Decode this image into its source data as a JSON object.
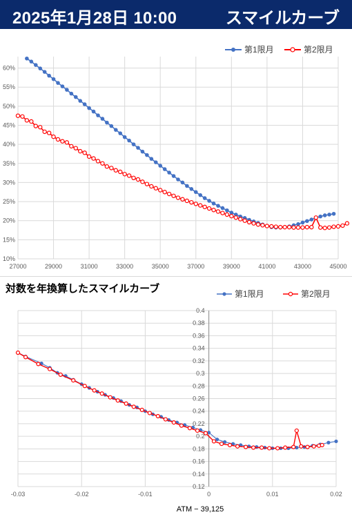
{
  "header": {
    "date": "2025年1月28日 10:00",
    "title": "スマイルカーブ"
  },
  "colors": {
    "header_bg": "#0b2a6b",
    "series1": "#4472c4",
    "series2": "#ff0000"
  },
  "chart_data": [
    {
      "type": "line",
      "title": "",
      "xlabel": "",
      "ylabel": "",
      "xlim": [
        27000,
        45000
      ],
      "ylim": [
        10,
        63
      ],
      "x_ticks": [
        27000,
        29000,
        31000,
        33000,
        35000,
        37000,
        39000,
        41000,
        43000,
        45000
      ],
      "x_tick_labels": [
        "27000",
        "29000",
        "31000",
        "33000",
        "35000",
        "37000",
        "39000",
        "41000",
        "43000",
        "45000"
      ],
      "y_ticks": [
        10,
        15,
        20,
        25,
        30,
        35,
        40,
        45,
        50,
        55,
        60
      ],
      "y_tick_labels": [
        "10%",
        "15%",
        "20%",
        "25%",
        "30%",
        "35%",
        "40%",
        "45%",
        "50%",
        "55%",
        "60%"
      ],
      "grid": true,
      "legend": "top-right",
      "series": [
        {
          "name": "第1限月",
          "points": [
            [
              27500,
              62.5
            ],
            [
              27750,
              61.7
            ],
            [
              28000,
              60.8
            ],
            [
              28250,
              59.9
            ],
            [
              28500,
              59.0
            ],
            [
              28750,
              58.0
            ],
            [
              29000,
              57.1
            ],
            [
              29250,
              56.1
            ],
            [
              29500,
              55.2
            ],
            [
              29750,
              54.3
            ],
            [
              30000,
              53.3
            ],
            [
              30250,
              52.4
            ],
            [
              30500,
              51.4
            ],
            [
              30750,
              50.5
            ],
            [
              31000,
              49.5
            ],
            [
              31250,
              48.6
            ],
            [
              31500,
              47.6
            ],
            [
              31750,
              46.7
            ],
            [
              32000,
              45.7
            ],
            [
              32250,
              44.8
            ],
            [
              32500,
              43.8
            ],
            [
              32750,
              42.9
            ],
            [
              33000,
              41.9
            ],
            [
              33250,
              41.0
            ],
            [
              33500,
              40.0
            ],
            [
              33750,
              39.1
            ],
            [
              34000,
              38.1
            ],
            [
              34250,
              37.2
            ],
            [
              34500,
              36.2
            ],
            [
              34750,
              35.3
            ],
            [
              35000,
              34.4
            ],
            [
              35250,
              33.5
            ],
            [
              35500,
              32.6
            ],
            [
              35750,
              31.7
            ],
            [
              36000,
              30.8
            ],
            [
              36250,
              30.0
            ],
            [
              36500,
              29.1
            ],
            [
              36750,
              28.3
            ],
            [
              37000,
              27.5
            ],
            [
              37250,
              26.7
            ],
            [
              37500,
              25.9
            ],
            [
              37750,
              25.2
            ],
            [
              38000,
              24.5
            ],
            [
              38250,
              23.9
            ],
            [
              38500,
              23.3
            ],
            [
              38750,
              22.7
            ],
            [
              39000,
              22.1
            ],
            [
              39250,
              21.6
            ],
            [
              39500,
              21.1
            ],
            [
              39750,
              20.7
            ],
            [
              40000,
              20.2
            ],
            [
              40250,
              19.8
            ],
            [
              40500,
              19.4
            ],
            [
              40750,
              19.0
            ],
            [
              41000,
              18.6
            ],
            [
              41250,
              18.3
            ],
            [
              41500,
              18.2
            ],
            [
              41750,
              18.2
            ],
            [
              42000,
              18.3
            ],
            [
              42250,
              18.5
            ],
            [
              42500,
              18.8
            ],
            [
              42750,
              19.1
            ],
            [
              43000,
              19.5
            ],
            [
              43250,
              19.9
            ],
            [
              43500,
              20.3
            ],
            [
              43750,
              20.7
            ],
            [
              44000,
              21.1
            ],
            [
              44250,
              21.4
            ],
            [
              44500,
              21.6
            ],
            [
              44750,
              21.8
            ]
          ]
        },
        {
          "name": "第2限月",
          "points": [
            [
              27000,
              47.5
            ],
            [
              27250,
              47.3
            ],
            [
              27500,
              46.3
            ],
            [
              27750,
              46.0
            ],
            [
              28000,
              44.8
            ],
            [
              28250,
              44.5
            ],
            [
              28500,
              43.3
            ],
            [
              28750,
              43.0
            ],
            [
              29000,
              42.0
            ],
            [
              29250,
              41.3
            ],
            [
              29500,
              40.8
            ],
            [
              29750,
              40.5
            ],
            [
              30000,
              39.5
            ],
            [
              30250,
              39.0
            ],
            [
              30500,
              38.2
            ],
            [
              30750,
              37.8
            ],
            [
              31000,
              36.8
            ],
            [
              31250,
              36.3
            ],
            [
              31500,
              35.6
            ],
            [
              31750,
              35.0
            ],
            [
              32000,
              34.2
            ],
            [
              32250,
              33.8
            ],
            [
              32500,
              33.2
            ],
            [
              32750,
              32.8
            ],
            [
              33000,
              32.2
            ],
            [
              33250,
              31.8
            ],
            [
              33500,
              31.2
            ],
            [
              33750,
              30.8
            ],
            [
              34000,
              30.2
            ],
            [
              34250,
              29.6
            ],
            [
              34500,
              29.0
            ],
            [
              34750,
              28.5
            ],
            [
              35000,
              28.0
            ],
            [
              35250,
              27.5
            ],
            [
              35500,
              27.0
            ],
            [
              35750,
              26.5
            ],
            [
              36000,
              26.0
            ],
            [
              36250,
              25.6
            ],
            [
              36500,
              25.2
            ],
            [
              36750,
              24.8
            ],
            [
              37000,
              24.4
            ],
            [
              37250,
              24.0
            ],
            [
              37500,
              23.6
            ],
            [
              37750,
              23.2
            ],
            [
              38000,
              22.8
            ],
            [
              38250,
              22.4
            ],
            [
              38500,
              22.0
            ],
            [
              38750,
              21.6
            ],
            [
              39000,
              21.2
            ],
            [
              39250,
              20.8
            ],
            [
              39500,
              20.4
            ],
            [
              39750,
              20.0
            ],
            [
              40000,
              19.6
            ],
            [
              40250,
              19.3
            ],
            [
              40500,
              19.0
            ],
            [
              40750,
              18.8
            ],
            [
              41000,
              18.6
            ],
            [
              41250,
              18.5
            ],
            [
              41500,
              18.4
            ],
            [
              41750,
              18.3
            ],
            [
              42000,
              18.3
            ],
            [
              42250,
              18.3
            ],
            [
              42500,
              18.2
            ],
            [
              42750,
              18.2
            ],
            [
              43000,
              18.2
            ],
            [
              43250,
              18.3
            ],
            [
              43500,
              18.3
            ],
            [
              43750,
              20.8
            ],
            [
              44000,
              18.2
            ],
            [
              44250,
              18.1
            ],
            [
              44500,
              18.2
            ],
            [
              44750,
              18.4
            ],
            [
              45000,
              18.5
            ],
            [
              45250,
              18.7
            ],
            [
              45500,
              19.3
            ]
          ]
        }
      ]
    },
    {
      "type": "line",
      "title": "対数を年換算したスマイルカーブ",
      "xlabel": "ATM − 39,125",
      "ylabel": "",
      "xlim": [
        -0.03,
        0.02
      ],
      "ylim": [
        0.12,
        0.4
      ],
      "x_ticks": [
        -0.03,
        -0.02,
        -0.01,
        0,
        0.01,
        0.02
      ],
      "x_tick_labels": [
        "-0.03",
        "-0.02",
        "-0.01",
        "0",
        "0.01",
        "0.02"
      ],
      "y_ticks": [
        0.12,
        0.14,
        0.16,
        0.18,
        0.2,
        0.22,
        0.24,
        0.26,
        0.28,
        0.3,
        0.32,
        0.34,
        0.36,
        0.38,
        0.4
      ],
      "y_tick_labels": [
        "0.12",
        "0.14",
        "0.16",
        "0.18",
        "0.2",
        "0.22",
        "0.24",
        "0.26",
        "0.28",
        "0.3",
        "0.32",
        "0.34",
        "0.36",
        "0.38",
        "0.4"
      ],
      "grid": true,
      "legend": "top-right",
      "series": [
        {
          "name": "第1限月",
          "points": [
            [
              -0.03,
              0.333
            ],
            [
              -0.0288,
              0.327
            ],
            [
              -0.0263,
              0.316
            ],
            [
              -0.025,
              0.309
            ],
            [
              -0.0238,
              0.301
            ],
            [
              -0.0225,
              0.296
            ],
            [
              -0.0213,
              0.29
            ],
            [
              -0.02,
              0.283
            ],
            [
              -0.0188,
              0.277
            ],
            [
              -0.0175,
              0.271
            ],
            [
              -0.0163,
              0.266
            ],
            [
              -0.015,
              0.261
            ],
            [
              -0.0138,
              0.256
            ],
            [
              -0.0125,
              0.25
            ],
            [
              -0.0113,
              0.246
            ],
            [
              -0.01,
              0.24
            ],
            [
              -0.0088,
              0.235
            ],
            [
              -0.0075,
              0.231
            ],
            [
              -0.0063,
              0.226
            ],
            [
              -0.005,
              0.222
            ],
            [
              -0.0038,
              0.218
            ],
            [
              -0.0025,
              0.214
            ],
            [
              -0.0013,
              0.21
            ],
            [
              0.0,
              0.206
            ],
            [
              0.0013,
              0.195
            ],
            [
              0.0025,
              0.191
            ],
            [
              0.0038,
              0.188
            ],
            [
              0.005,
              0.186
            ],
            [
              0.0063,
              0.184
            ],
            [
              0.0075,
              0.183
            ],
            [
              0.0088,
              0.182
            ],
            [
              0.01,
              0.181
            ],
            [
              0.0113,
              0.181
            ],
            [
              0.0125,
              0.181
            ],
            [
              0.0138,
              0.182
            ],
            [
              0.015,
              0.183
            ],
            [
              0.0163,
              0.185
            ],
            [
              0.0175,
              0.187
            ],
            [
              0.0188,
              0.19
            ],
            [
              0.02,
              0.192
            ]
          ]
        },
        {
          "name": "第2限月",
          "points": [
            [
              -0.03,
              0.333
            ],
            [
              -0.0288,
              0.326
            ],
            [
              -0.0268,
              0.315
            ],
            [
              -0.025,
              0.307
            ],
            [
              -0.0233,
              0.298
            ],
            [
              -0.0213,
              0.289
            ],
            [
              -0.0195,
              0.28
            ],
            [
              -0.018,
              0.273
            ],
            [
              -0.0168,
              0.268
            ],
            [
              -0.0155,
              0.262
            ],
            [
              -0.0143,
              0.257
            ],
            [
              -0.013,
              0.252
            ],
            [
              -0.0118,
              0.247
            ],
            [
              -0.0105,
              0.242
            ],
            [
              -0.0093,
              0.237
            ],
            [
              -0.008,
              0.232
            ],
            [
              -0.0068,
              0.227
            ],
            [
              -0.0055,
              0.222
            ],
            [
              -0.0043,
              0.217
            ],
            [
              -0.003,
              0.213
            ],
            [
              -0.0018,
              0.209
            ],
            [
              -0.0005,
              0.205
            ],
            [
              0.0008,
              0.192
            ],
            [
              0.002,
              0.188
            ],
            [
              0.0033,
              0.186
            ],
            [
              0.0045,
              0.184
            ],
            [
              0.0058,
              0.183
            ],
            [
              0.007,
              0.182
            ],
            [
              0.0083,
              0.182
            ],
            [
              0.0095,
              0.181
            ],
            [
              0.0108,
              0.181
            ],
            [
              0.012,
              0.182
            ],
            [
              0.0133,
              0.183
            ],
            [
              0.0138,
              0.209
            ],
            [
              0.0145,
              0.184
            ],
            [
              0.0155,
              0.183
            ],
            [
              0.0165,
              0.184
            ],
            [
              0.0173,
              0.185
            ],
            [
              0.0178,
              0.186
            ]
          ]
        }
      ]
    }
  ]
}
